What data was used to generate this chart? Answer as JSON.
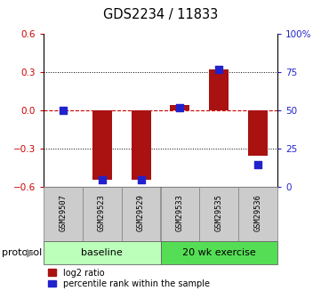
{
  "title": "GDS2234 / 11833",
  "samples": [
    "GSM29507",
    "GSM29523",
    "GSM29529",
    "GSM29533",
    "GSM29535",
    "GSM29536"
  ],
  "log2_ratio": [
    0.0,
    -0.54,
    -0.54,
    0.04,
    0.32,
    -0.35
  ],
  "percentile_rank": [
    50,
    5,
    5,
    52,
    77,
    15
  ],
  "ylim_left": [
    -0.6,
    0.6
  ],
  "ylim_right": [
    0,
    100
  ],
  "yticks_left": [
    -0.6,
    -0.3,
    0.0,
    0.3,
    0.6
  ],
  "yticks_right": [
    0,
    25,
    50,
    75,
    100
  ],
  "ytick_labels_right": [
    "0",
    "25",
    "50",
    "75",
    "100%"
  ],
  "bar_color": "#aa1111",
  "dot_color": "#2222cc",
  "zero_line_color": "#cc0000",
  "grid_color": "#000000",
  "baseline_color": "#bbffbb",
  "exercise_color": "#55dd55",
  "tick_label_color_left": "#cc0000",
  "tick_label_color_right": "#2222cc",
  "baseline_label": "baseline",
  "exercise_label": "20 wk exercise",
  "protocol_label": "protocol",
  "legend_red": "log2 ratio",
  "legend_blue": "percentile rank within the sample",
  "bar_width": 0.5,
  "dot_size": 35
}
